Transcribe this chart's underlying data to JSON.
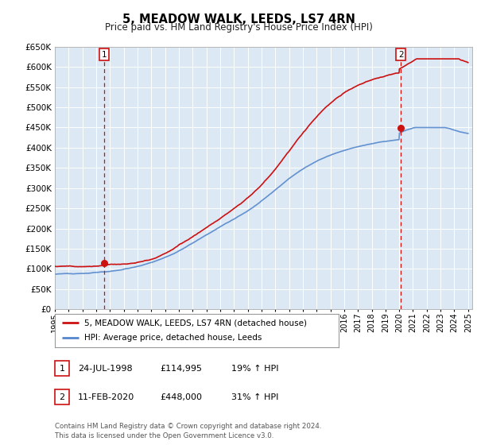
{
  "title": "5, MEADOW WALK, LEEDS, LS7 4RN",
  "subtitle": "Price paid vs. HM Land Registry's House Price Index (HPI)",
  "legend_line1": "5, MEADOW WALK, LEEDS, LS7 4RN (detached house)",
  "legend_line2": "HPI: Average price, detached house, Leeds",
  "annotation1_date": "24-JUL-1998",
  "annotation1_price": "£114,995",
  "annotation1_hpi": "19% ↑ HPI",
  "annotation2_date": "11-FEB-2020",
  "annotation2_price": "£448,000",
  "annotation2_hpi": "31% ↑ HPI",
  "footer": "Contains HM Land Registry data © Crown copyright and database right 2024.\nThis data is licensed under the Open Government Licence v3.0.",
  "hpi_color": "#5588cc",
  "price_color": "#cc1111",
  "background_color": "#ffffff",
  "plot_bg_color": "#dde8f5",
  "grid_color": "#ffffff",
  "ylim": [
    0,
    650000
  ],
  "yticks": [
    0,
    50000,
    100000,
    150000,
    200000,
    250000,
    300000,
    350000,
    400000,
    450000,
    500000,
    550000,
    600000,
    650000
  ],
  "sale1_x": 1998.56,
  "sale1_y": 114995,
  "sale2_x": 2020.12,
  "sale2_y": 448000,
  "xmin": 1995,
  "xmax": 2025
}
